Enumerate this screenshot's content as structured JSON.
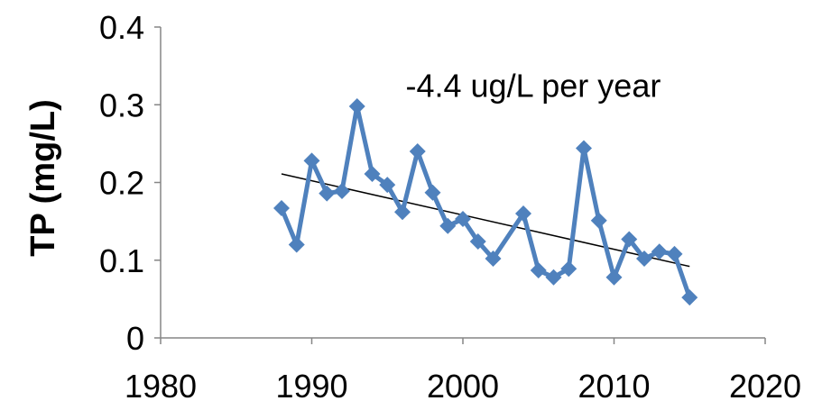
{
  "chart_data": {
    "type": "line",
    "title": "",
    "xlabel": "",
    "ylabel": "TP (mg/L)",
    "xlim": [
      1980,
      2020
    ],
    "ylim": [
      0,
      0.4
    ],
    "xticks": [
      1980,
      1990,
      2000,
      2010,
      2020
    ],
    "yticks": [
      0,
      0.1,
      0.2,
      0.3,
      0.4
    ],
    "xtick_labels": [
      "1980",
      "1990",
      "2000",
      "2010",
      "2020"
    ],
    "ytick_labels": [
      "0",
      "0.1",
      "0.2",
      "0.3",
      "0.4"
    ],
    "grid": false,
    "legend": "none",
    "series": [
      {
        "color": "#4F81BD",
        "marker": "diamond",
        "x": [
          1988,
          1989,
          1990,
          1991,
          1992,
          1993,
          1994,
          1995,
          1996,
          1997,
          1998,
          1999,
          2000,
          2001,
          2002,
          2004,
          2005,
          2006,
          2007,
          2008,
          2009,
          2010,
          2011,
          2012,
          2013,
          2014,
          2015
        ],
        "y": [
          0.167,
          0.12,
          0.228,
          0.186,
          0.189,
          0.298,
          0.211,
          0.197,
          0.162,
          0.24,
          0.187,
          0.144,
          0.153,
          0.124,
          0.102,
          0.16,
          0.087,
          0.078,
          0.089,
          0.244,
          0.151,
          0.078,
          0.127,
          0.102,
          0.111,
          0.108,
          0.052
        ]
      }
    ],
    "trendline": {
      "color": "#000000",
      "x": [
        1988,
        2015
      ],
      "y": [
        0.211,
        0.092
      ]
    },
    "annotations": [
      {
        "text": "-4.4 ug/L per year",
        "x": 1998,
        "y": 0.31
      }
    ]
  }
}
